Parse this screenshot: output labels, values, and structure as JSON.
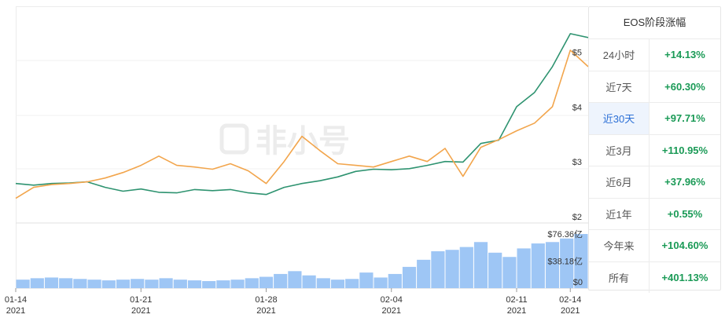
{
  "chart_data": {
    "type": "line",
    "watermark": "非小号",
    "x_ticks": [
      {
        "day": "01-14",
        "year": "2021"
      },
      {
        "day": "01-21",
        "year": "2021"
      },
      {
        "day": "01-28",
        "year": "2021"
      },
      {
        "day": "02-04",
        "year": "2021"
      },
      {
        "day": "02-11",
        "year": "2021"
      },
      {
        "day": "02-14",
        "year": "2021"
      }
    ],
    "x_tick_dates": [
      "2021-01-14",
      "2021-01-21",
      "2021-01-28",
      "2021-02-04",
      "2021-02-11",
      "2021-02-14"
    ],
    "price_axis": {
      "ticks": [
        "$2",
        "$3",
        "$4",
        "$5"
      ],
      "values": [
        2,
        3,
        4,
        5
      ],
      "range": [
        2,
        5.95
      ]
    },
    "volume_axis": {
      "ticks": [
        "$76.36亿",
        "$38.18亿",
        "$0"
      ],
      "values": [
        76.36,
        38.18,
        0
      ],
      "range": [
        0,
        76.36
      ]
    },
    "series": [
      {
        "color": "#2e9370",
        "dates": [
          "2021-01-14",
          "2021-01-15",
          "2021-01-16",
          "2021-01-17",
          "2021-01-18",
          "2021-01-19",
          "2021-01-20",
          "2021-01-21",
          "2021-01-22",
          "2021-01-23",
          "2021-01-24",
          "2021-01-25",
          "2021-01-26",
          "2021-01-27",
          "2021-01-28",
          "2021-01-29",
          "2021-01-30",
          "2021-01-31",
          "2021-02-01",
          "2021-02-02",
          "2021-02-03",
          "2021-02-04",
          "2021-02-05",
          "2021-02-06",
          "2021-02-07",
          "2021-02-08",
          "2021-02-09",
          "2021-02-10",
          "2021-02-11",
          "2021-02-12",
          "2021-02-13",
          "2021-02-14",
          "2021-02-15"
        ],
        "values": [
          2.72,
          2.69,
          2.72,
          2.73,
          2.75,
          2.65,
          2.58,
          2.62,
          2.56,
          2.55,
          2.61,
          2.59,
          2.61,
          2.55,
          2.52,
          2.65,
          2.72,
          2.77,
          2.84,
          2.94,
          2.98,
          2.97,
          2.99,
          3.05,
          3.12,
          3.11,
          3.45,
          3.51,
          4.12,
          4.38,
          4.85,
          5.45,
          5.38
        ]
      },
      {
        "color": "#f2a54c",
        "dates": [
          "2021-01-14",
          "2021-01-15",
          "2021-01-16",
          "2021-01-17",
          "2021-01-18",
          "2021-01-19",
          "2021-01-20",
          "2021-01-21",
          "2021-01-22",
          "2021-01-23",
          "2021-01-24",
          "2021-01-25",
          "2021-01-26",
          "2021-01-27",
          "2021-01-28",
          "2021-01-29",
          "2021-01-30",
          "2021-01-31",
          "2021-02-01",
          "2021-02-02",
          "2021-02-03",
          "2021-02-04",
          "2021-02-05",
          "2021-02-06",
          "2021-02-07",
          "2021-02-08",
          "2021-02-09",
          "2021-02-10",
          "2021-02-11",
          "2021-02-12",
          "2021-02-13",
          "2021-02-14",
          "2021-02-15"
        ],
        "values": [
          2.45,
          2.65,
          2.7,
          2.72,
          2.75,
          2.82,
          2.92,
          3.05,
          3.22,
          3.05,
          3.02,
          2.98,
          3.08,
          2.95,
          2.72,
          3.12,
          3.58,
          3.32,
          3.08,
          3.05,
          3.02,
          3.12,
          3.22,
          3.12,
          3.36,
          2.85,
          3.38,
          3.52,
          3.68,
          3.82,
          4.12,
          5.15,
          4.85
        ]
      },
      {
        "type": "bar",
        "color": "#9ec6f5",
        "values": [
          12,
          14,
          15,
          14,
          13,
          12,
          11,
          12,
          13,
          12,
          14,
          12,
          11,
          10,
          11,
          12,
          14,
          16,
          20,
          24,
          18,
          14,
          12,
          13,
          22,
          15,
          20,
          30,
          40,
          52,
          54,
          58,
          65,
          50,
          44,
          56,
          63,
          65,
          70,
          76.36
        ]
      }
    ]
  },
  "panel": {
    "title": "EOS阶段涨幅",
    "rows": [
      {
        "label": "24小时",
        "value": "+14.13%"
      },
      {
        "label": "近7天",
        "value": "+60.30%"
      },
      {
        "label": "近30天",
        "value": "+97.71%"
      },
      {
        "label": "近3月",
        "value": "+110.95%"
      },
      {
        "label": "近6月",
        "value": "+37.96%"
      },
      {
        "label": "近1年",
        "value": "+0.55%"
      },
      {
        "label": "今年来",
        "value": "+104.60%"
      },
      {
        "label": "所有",
        "value": "+401.13%"
      }
    ],
    "active_row": "近30天",
    "value_color": "#1a9a56"
  }
}
